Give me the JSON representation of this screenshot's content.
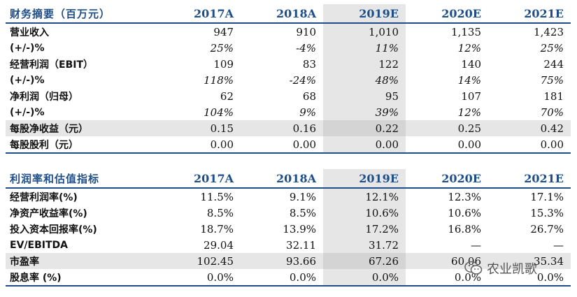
{
  "table1": {
    "header": [
      "财务摘要（百万元）",
      "2017A",
      "2018A",
      "2019E",
      "2020E",
      "2021E"
    ],
    "rows": [
      {
        "label": "营业收入",
        "values": [
          "947",
          "910",
          "1,010",
          "1,135",
          "1,423"
        ],
        "italic": false,
        "grey": false
      },
      {
        "label": "(+/-)%",
        "values": [
          "25%",
          "-4%",
          "11%",
          "12%",
          "25%"
        ],
        "italic": true,
        "grey": false
      },
      {
        "label": "经营利润（EBIT）",
        "values": [
          "109",
          "83",
          "122",
          "140",
          "244"
        ],
        "italic": false,
        "grey": false
      },
      {
        "label": "(+/-)%",
        "values": [
          "118%",
          "-24%",
          "48%",
          "14%",
          "75%"
        ],
        "italic": true,
        "grey": false
      },
      {
        "label": "净利润（归母）",
        "values": [
          "62",
          "68",
          "95",
          "107",
          "181"
        ],
        "italic": false,
        "grey": false
      },
      {
        "label": "(+/-)%",
        "values": [
          "104%",
          "9%",
          "39%",
          "12%",
          "70%"
        ],
        "italic": true,
        "grey": false
      },
      {
        "label": "每股净收益（元）",
        "values": [
          "0.15",
          "0.16",
          "0.22",
          "0.25",
          "0.42"
        ],
        "italic": false,
        "grey": true
      },
      {
        "label": "每股股利（元）",
        "values": [
          "0.00",
          "0.00",
          "0.00",
          "0.00",
          "0.00"
        ],
        "italic": false,
        "grey": false
      }
    ]
  },
  "table2": {
    "header": [
      "利润率和估值指标",
      "2017A",
      "2018A",
      "2019E",
      "2020E",
      "2021E"
    ],
    "rows": [
      {
        "label": "经营利润率(%)",
        "values": [
          "11.5%",
          "9.1%",
          "12.1%",
          "12.3%",
          "17.1%"
        ],
        "grey": false
      },
      {
        "label": "净资产收益率(%)",
        "values": [
          "8.5%",
          "8.5%",
          "10.6%",
          "10.6%",
          "15.3%"
        ],
        "grey": false
      },
      {
        "label": "投入资本回报率(%)",
        "values": [
          "18.7%",
          "13.9%",
          "17.2%",
          "16.8%",
          "26.7%"
        ],
        "grey": false
      },
      {
        "label": "EV/EBITDA",
        "values": [
          "29.04",
          "32.11",
          "31.72",
          "—",
          "—"
        ],
        "grey": false
      },
      {
        "label": "市盈率",
        "values": [
          "102.45",
          "93.66",
          "67.26",
          "60.06",
          "35.34"
        ],
        "grey": true
      },
      {
        "label": "股息率 (%)",
        "values": [
          "0.0%",
          "0.0%",
          "0.0%",
          "0.0%",
          "0.0%"
        ],
        "grey": false
      }
    ]
  },
  "watermark": {
    "text": "农业凯歌",
    "icon": "wechat-icon"
  },
  "colors": {
    "header_text": "#1d4e89",
    "rule": "#1d4e89",
    "shade": "#e6e6e6",
    "shade_dark": "#d4d4d4"
  }
}
